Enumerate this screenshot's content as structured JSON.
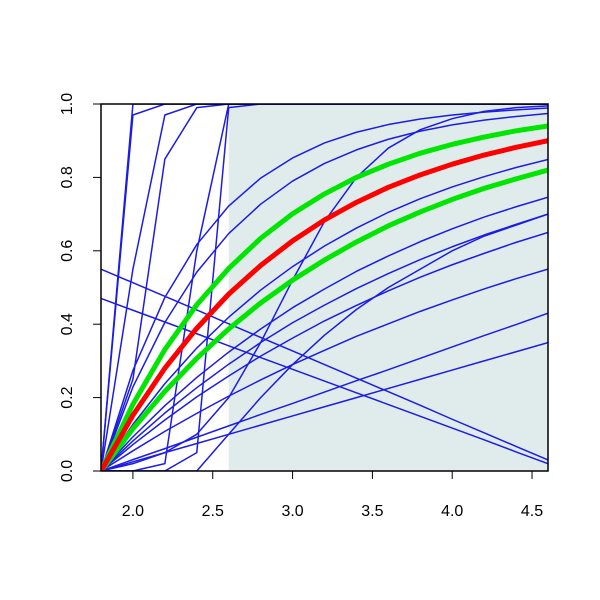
{
  "chart_data": {
    "type": "line",
    "x": [
      1.8,
      2.0,
      2.2,
      2.4,
      2.6,
      2.8,
      3.0,
      3.2,
      3.4,
      3.6,
      3.8,
      4.0,
      4.2,
      4.4,
      4.6
    ],
    "xlim": [
      1.8,
      4.6
    ],
    "ylim": [
      0,
      1
    ],
    "xticks": [
      {
        "value": 2,
        "label": "2.0"
      },
      {
        "value": 2.5,
        "label": "2.5"
      },
      {
        "value": 3,
        "label": "3.0"
      },
      {
        "value": 3.5,
        "label": "3.5"
      },
      {
        "value": 4,
        "label": "4.0"
      },
      {
        "value": 4.5,
        "label": "4.5"
      }
    ],
    "yticks": [
      {
        "value": 0,
        "label": "0.0"
      },
      {
        "value": 0.2,
        "label": "0.2"
      },
      {
        "value": 0.4,
        "label": "0.4"
      },
      {
        "value": 0.6,
        "label": "0.6"
      },
      {
        "value": 0.8,
        "label": "0.8"
      },
      {
        "value": 1,
        "label": "1.0"
      }
    ],
    "grid": false,
    "shaded_region": {
      "x": [
        2.6,
        4.6
      ],
      "color": "#e0ecec"
    },
    "series": [
      {
        "color": "#1c1ce6",
        "linewidth": 1.5,
        "values": [
          0,
          1,
          1,
          1,
          1,
          1,
          1,
          1,
          1,
          1,
          1,
          1,
          1,
          1,
          1
        ]
      },
      {
        "color": "#1c1ce6",
        "linewidth": 1.5,
        "values": [
          0,
          0.97,
          1,
          1,
          1,
          1,
          1,
          1,
          1,
          1,
          1,
          1,
          1,
          1,
          1
        ]
      },
      {
        "color": "#1c1ce6",
        "linewidth": 1.5,
        "values": [
          0,
          0.55,
          0.97,
          1,
          1,
          1,
          1,
          1,
          1,
          1,
          1,
          1,
          1,
          1,
          1
        ]
      },
      {
        "color": "#1c1ce6",
        "linewidth": 1.5,
        "values": [
          0,
          0.25,
          0.85,
          0.99,
          1,
          1,
          1,
          1,
          1,
          1,
          1,
          1,
          1,
          1,
          1
        ]
      },
      {
        "color": "#1c1ce6",
        "linewidth": 1.5,
        "values": [
          0,
          0,
          0.02,
          0.6,
          1,
          1,
          1,
          1,
          1,
          1,
          1,
          1,
          1,
          1,
          1
        ]
      },
      {
        "color": "#1c1ce6",
        "linewidth": 1.5,
        "values": [
          0,
          0,
          0,
          0.05,
          0.99,
          1,
          1,
          1,
          1,
          1,
          1,
          1,
          1,
          1,
          1
        ]
      },
      {
        "color": "#1c1ce6",
        "linewidth": 1.5,
        "values": [
          0,
          0.274,
          0.473,
          0.617,
          0.722,
          0.798,
          0.853,
          0.894,
          0.923,
          0.944,
          0.959,
          0.97,
          0.978,
          0.984,
          0.989
        ]
      },
      {
        "color": "#1c1ce6",
        "linewidth": 1.5,
        "values": [
          0,
          0.02,
          0.05,
          0.1,
          0.2,
          0.35,
          0.52,
          0.68,
          0.8,
          0.88,
          0.93,
          0.96,
          0.98,
          0.99,
          0.995
        ]
      },
      {
        "color": "#1c1ce6",
        "linewidth": 1.5,
        "values": [
          0,
          0.229,
          0.405,
          0.542,
          0.647,
          0.727,
          0.79,
          0.838,
          0.875,
          0.904,
          0.926,
          0.943,
          0.956,
          0.966,
          0.974
        ]
      },
      {
        "color": "#1c1ce6",
        "linewidth": 1.5,
        "values": [
          0,
          0.127,
          0.238,
          0.335,
          0.419,
          0.493,
          0.557,
          0.613,
          0.662,
          0.705,
          0.742,
          0.774,
          0.802,
          0.827,
          0.849
        ]
      },
      {
        "color": "#1c1ce6",
        "linewidth": 1.5,
        "values": [
          0,
          0.093,
          0.178,
          0.255,
          0.324,
          0.387,
          0.445,
          0.496,
          0.544,
          0.586,
          0.625,
          0.66,
          0.692,
          0.72,
          0.746
        ]
      },
      {
        "color": "#1c1ce6",
        "linewidth": 1.5,
        "values": [
          0,
          0.082,
          0.158,
          0.227,
          0.291,
          0.35,
          0.404,
          0.452,
          0.497,
          0.538,
          0.576,
          0.611,
          0.643,
          0.672,
          0.7
        ]
      },
      {
        "color": "#1c1ce6",
        "linewidth": 1.5,
        "values": [
          0,
          0.072,
          0.139,
          0.202,
          0.259,
          0.313,
          0.362,
          0.409,
          0.451,
          0.491,
          0.528,
          0.562,
          0.593,
          0.623,
          0.65
        ]
      },
      {
        "color": "#1c1ce6",
        "linewidth": 1.5,
        "values": [
          0,
          0.055,
          0.108,
          0.157,
          0.204,
          0.248,
          0.29,
          0.329,
          0.367,
          0.401,
          0.435,
          0.466,
          0.496,
          0.524,
          0.55
        ]
      },
      {
        "color": "#1c1ce6",
        "linewidth": 1.5,
        "values": [
          0,
          0.031,
          0.061,
          0.092,
          0.123,
          0.154,
          0.184,
          0.215,
          0.246,
          0.276,
          0.307,
          0.338,
          0.369,
          0.399,
          0.43
        ]
      },
      {
        "color": "#1c1ce6",
        "linewidth": 1.5,
        "values": [
          0,
          0.025,
          0.05,
          0.075,
          0.1,
          0.125,
          0.15,
          0.175,
          0.2,
          0.225,
          0.25,
          0.275,
          0.3,
          0.325,
          0.35
        ]
      },
      {
        "color": "#1c1ce6",
        "linewidth": 1.5,
        "values": [
          0,
          0,
          0,
          0,
          0.1,
          0.2,
          0.29,
          0.37,
          0.44,
          0.5,
          0.55,
          0.6,
          0.64,
          0.67,
          0.7
        ]
      },
      {
        "color": "#1c1ce6",
        "linewidth": 1.5,
        "values": [
          0.55,
          0.513,
          0.476,
          0.439,
          0.401,
          0.364,
          0.327,
          0.29,
          0.253,
          0.216,
          0.179,
          0.141,
          0.104,
          0.067,
          0.03
        ]
      },
      {
        "color": "#1c1ce6",
        "linewidth": 1.5,
        "values": [
          0.47,
          0.438,
          0.406,
          0.374,
          0.341,
          0.309,
          0.277,
          0.245,
          0.213,
          0.181,
          0.149,
          0.117,
          0.085,
          0.052,
          0.02
        ]
      },
      {
        "color": "#00e600",
        "linewidth": 5,
        "values": [
          0,
          0.182,
          0.331,
          0.453,
          0.552,
          0.634,
          0.701,
          0.755,
          0.8,
          0.836,
          0.866,
          0.89,
          0.91,
          0.927,
          0.94
        ]
      },
      {
        "color": "#00e600",
        "linewidth": 5,
        "values": [
          0,
          0.115,
          0.217,
          0.307,
          0.387,
          0.458,
          0.52,
          0.575,
          0.624,
          0.668,
          0.706,
          0.74,
          0.77,
          0.796,
          0.82
        ]
      },
      {
        "color": "#ff0000",
        "linewidth": 5,
        "values": [
          0,
          0.152,
          0.28,
          0.389,
          0.482,
          0.56,
          0.627,
          0.684,
          0.732,
          0.773,
          0.807,
          0.836,
          0.861,
          0.882,
          0.9
        ]
      }
    ]
  }
}
